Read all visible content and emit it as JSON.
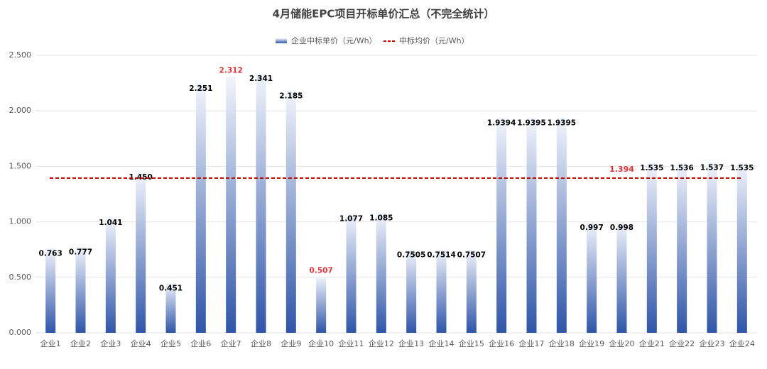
{
  "chart_data": {
    "type": "bar",
    "title": "4月储能EPC项目开标单价汇总（不完全统计）",
    "categories": [
      "企业1",
      "企业2",
      "企业3",
      "企业4",
      "企业5",
      "企业6",
      "企业7",
      "企业8",
      "企业9",
      "企业10",
      "企业11",
      "企业12",
      "企业13",
      "企业14",
      "企业15",
      "企业16",
      "企业17",
      "企业18",
      "企业19",
      "企业20",
      "企业21",
      "企业22",
      "企业23",
      "企业24"
    ],
    "series": [
      {
        "name": "企业中标单价（元/Wh）",
        "color": "#2f55a8",
        "values": [
          0.763,
          0.777,
          1.041,
          1.45,
          0.451,
          2.251,
          2.312,
          2.341,
          2.185,
          0.507,
          1.077,
          1.085,
          0.7505,
          0.7514,
          0.7507,
          1.9394,
          1.9395,
          1.9395,
          0.997,
          0.998,
          1.535,
          1.536,
          1.537,
          1.535
        ],
        "value_labels": [
          "0.763",
          "0.777",
          "1.041",
          "1.450",
          "0.451",
          "2.251",
          "2.312",
          "2.341",
          "2.185",
          "0.507",
          "1.077",
          "1.085",
          "0.7505",
          "0.7514",
          "0.7507",
          "1.9394",
          "1.9395",
          "1.9395",
          "0.997",
          "0.998",
          "1.535",
          "1.536",
          "1.537",
          "1.535"
        ],
        "highlight": [
          6,
          9
        ],
        "highlight_color": "#e0303a"
      },
      {
        "name": "中标均价（元/Wh）",
        "color": "#c00000",
        "value": 1.394,
        "value_label": "1.394"
      }
    ],
    "ylim": [
      0,
      2.5
    ],
    "yticks": [
      {
        "value": 0,
        "label": "0.000"
      },
      {
        "value": 0.5,
        "label": "0.500"
      },
      {
        "value": 1,
        "label": "1.000"
      },
      {
        "value": 1.5,
        "label": "1.500"
      },
      {
        "value": 2,
        "label": "2.000"
      },
      {
        "value": 2.5,
        "label": "2.500"
      }
    ],
    "grid": true,
    "legend": "top"
  }
}
